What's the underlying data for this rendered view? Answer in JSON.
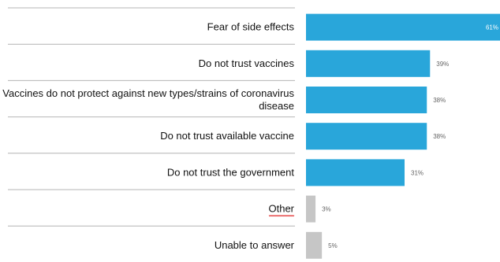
{
  "chart_data": {
    "type": "bar",
    "orientation": "horizontal",
    "categories": [
      "Fear of side effects",
      "Do not trust vaccines",
      "Vaccines do not protect against new types/strains of coronavirus disease",
      "Do not trust available vaccine",
      "Do not trust the government",
      "Other",
      "Unable to answer"
    ],
    "category_lines": [
      [
        "Fear of side effects"
      ],
      [
        "Do not trust vaccines"
      ],
      [
        "Vaccines do not protect against new types/strains of coronavirus",
        "disease"
      ],
      [
        "Do not trust available vaccine"
      ],
      [
        "Do not trust the government"
      ],
      [
        "Other"
      ],
      [
        "Unable to answer"
      ]
    ],
    "values": [
      61,
      39,
      38,
      38,
      31,
      3,
      5
    ],
    "value_labels": [
      "61%",
      "39%",
      "38%",
      "38%",
      "31%",
      "3%",
      "5%"
    ],
    "bar_colors": [
      "#29a6da",
      "#29a6da",
      "#29a6da",
      "#29a6da",
      "#29a6da",
      "#c6c6c6",
      "#c6c6c6"
    ],
    "xlim": [
      0,
      61
    ],
    "grid": false,
    "legend": "none"
  }
}
